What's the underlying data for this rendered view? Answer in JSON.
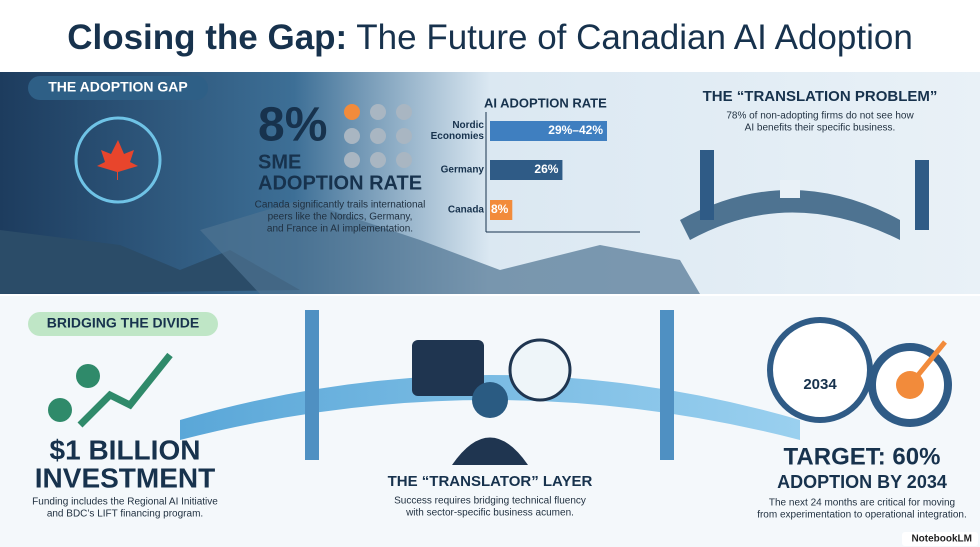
{
  "header": {
    "title_bold": "Closing the Gap:",
    "title_rest": "The Future of Canadian AI Adoption"
  },
  "gap": {
    "label": "THE ADOPTION GAP",
    "stat": "8%",
    "stat_line1": "SME",
    "stat_line2": "ADOPTION RATE",
    "text": [
      "Canada significantly trails international",
      "peers like the Nordics, Germany,",
      "and France in AI implementation."
    ]
  },
  "chart_data": {
    "type": "bar",
    "title": "AI ADOPTION RATE",
    "categories": [
      [
        "Nordic",
        "Economies"
      ],
      "Germany",
      "Canada"
    ],
    "values": [
      42,
      26,
      8
    ],
    "value_labels": [
      "29%–42%",
      "26%",
      "8%"
    ],
    "colors": [
      "#3f7fc0",
      "#2f5b86",
      "#f28b3b"
    ]
  },
  "translation": {
    "title": "THE “TRANSLATION PROBLEM”",
    "text": [
      "78% of non-adopting firms do not see how",
      "AI benefits their specific business."
    ]
  },
  "bridge": {
    "label": "BRIDGING THE DIVIDE",
    "investment": {
      "line1": "$1 BILLION",
      "line2": "INVESTMENT",
      "text": [
        "Funding includes the Regional AI Initiative",
        "and BDC’s LIFT financing program."
      ]
    },
    "translator": {
      "title": "THE “TRANSLATOR” LAYER",
      "text": [
        "Success requires bridging technical fluency",
        "with sector-specific business acumen."
      ]
    },
    "target": {
      "badge": "2034",
      "line1": "TARGET: 60%",
      "line2": "ADOPTION BY 2034",
      "text": [
        "The next 24 months are critical for moving",
        "from experimentation to operational integration."
      ]
    }
  },
  "watermark": "NotebookLM"
}
